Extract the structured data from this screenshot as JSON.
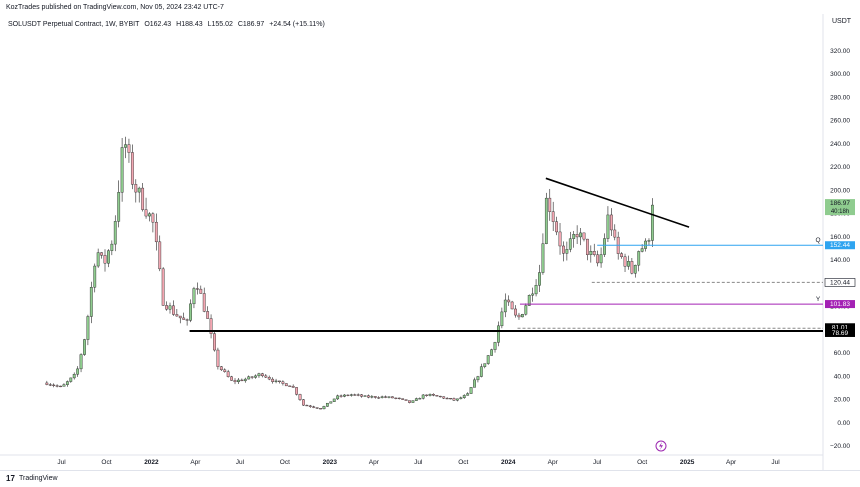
{
  "header": {
    "published": "KozTrades published on TradingView.com, Nov 05, 2024 23:42 UTC-7"
  },
  "legend": {
    "symbol": "SOLUSDT Perpetual Contract, 1W, BYBIT",
    "open": "O162.43",
    "high": "H188.43",
    "low": "L155.02",
    "close": "C186.97",
    "change": "+24.54 (+15.11%)"
  },
  "price_axis": {
    "currency": "USDT",
    "ticks": [
      "320.00",
      "300.00",
      "280.00",
      "260.00",
      "240.00",
      "220.00",
      "200.00",
      "180.00",
      "160.00",
      "140.00",
      "120.00",
      "100.00",
      "80.00",
      "60.00",
      "40.00",
      "20.00",
      "0.00",
      "−20.00"
    ]
  },
  "time_axis": {
    "labels": [
      "Jul",
      "Oct",
      "2022",
      "Apr",
      "Jul",
      "Oct",
      "2023",
      "Apr",
      "Jul",
      "Oct",
      "2024",
      "Apr",
      "Jul",
      "Oct",
      "2025",
      "Apr",
      "Jul"
    ]
  },
  "price_labels": [
    {
      "text": "186.97",
      "subtext": "40:18h",
      "kind": "last",
      "color": "#8fcc8f"
    },
    {
      "text": "152.44",
      "kind": "level",
      "color": "#2ea4f0"
    },
    {
      "text": "120.44",
      "kind": "level",
      "color": "#ffffff"
    },
    {
      "text": "101.83",
      "kind": "level",
      "color": "#a321b4"
    },
    {
      "text": "81.01",
      "kind": "level",
      "color": "#000000"
    },
    {
      "text": "78.69",
      "kind": "level",
      "color": "#000000"
    }
  ],
  "line_tags": {
    "q": "Q",
    "y": "Y"
  },
  "footer": {
    "brand": "TradingView",
    "logo": "17"
  },
  "chart_data": {
    "type": "candlestick",
    "interval": "1W",
    "ylim": [
      -28,
      335
    ],
    "grid": false,
    "series_points": [
      [
        "2021-06-01",
        34
      ],
      [
        "2021-07-01",
        30
      ],
      [
        "2021-08-01",
        42
      ],
      [
        "2021-08-20",
        78
      ],
      [
        "2021-09-10",
        150
      ],
      [
        "2021-09-25",
        135
      ],
      [
        "2021-10-15",
        160
      ],
      [
        "2021-11-06",
        245
      ],
      [
        "2021-11-25",
        205
      ],
      [
        "2021-12-20",
        185
      ],
      [
        "2022-01-05",
        170
      ],
      [
        "2022-01-25",
        105
      ],
      [
        "2022-02-15",
        95
      ],
      [
        "2022-03-15",
        85
      ],
      [
        "2022-04-01",
        125
      ],
      [
        "2022-04-25",
        90
      ],
      [
        "2022-05-15",
        50
      ],
      [
        "2022-06-15",
        35
      ],
      [
        "2022-07-20",
        38
      ],
      [
        "2022-08-15",
        42
      ],
      [
        "2022-09-15",
        34
      ],
      [
        "2022-10-15",
        32
      ],
      [
        "2022-11-08",
        15
      ],
      [
        "2022-12-15",
        12
      ],
      [
        "2023-01-15",
        22
      ],
      [
        "2023-02-15",
        24
      ],
      [
        "2023-03-15",
        22
      ],
      [
        "2023-04-15",
        22
      ],
      [
        "2023-05-15",
        21
      ],
      [
        "2023-06-15",
        17
      ],
      [
        "2023-07-15",
        24
      ],
      [
        "2023-08-15",
        22
      ],
      [
        "2023-09-15",
        19
      ],
      [
        "2023-10-10",
        24
      ],
      [
        "2023-11-05",
        45
      ],
      [
        "2023-12-01",
        65
      ],
      [
        "2023-12-25",
        105
      ],
      [
        "2024-01-20",
        88
      ],
      [
        "2024-02-10",
        105
      ],
      [
        "2024-03-05",
        130
      ],
      [
        "2024-03-20",
        195
      ],
      [
        "2024-04-10",
        165
      ],
      [
        "2024-04-25",
        140
      ],
      [
        "2024-05-20",
        165
      ],
      [
        "2024-06-15",
        145
      ],
      [
        "2024-07-05",
        135
      ],
      [
        "2024-07-25",
        180
      ],
      [
        "2024-08-10",
        145
      ],
      [
        "2024-08-25",
        140
      ],
      [
        "2024-09-10",
        130
      ],
      [
        "2024-09-25",
        150
      ],
      [
        "2024-10-10",
        152
      ],
      [
        "2024-10-28",
        186.97
      ]
    ],
    "lines": [
      {
        "name": "descending trendline",
        "from": [
          "2024-03-18",
          210
        ],
        "to": [
          "2025-01-05",
          168
        ]
      },
      {
        "name": "Q",
        "type": "horizontal",
        "value": 152.44,
        "start": "2024-07-01"
      },
      {
        "name": "",
        "type": "horizontal",
        "value": 120.44,
        "start": "2024-06-20",
        "dashed": true
      },
      {
        "name": "Y",
        "type": "horizontal",
        "value": 101.83,
        "start": "2024-01-25"
      },
      {
        "name": "",
        "type": "horizontal",
        "value": 81.01,
        "start": "2024-01-20",
        "dashed": true
      },
      {
        "name": "",
        "type": "horizontal",
        "value": 78.69,
        "start": "2022-03-20"
      }
    ]
  }
}
